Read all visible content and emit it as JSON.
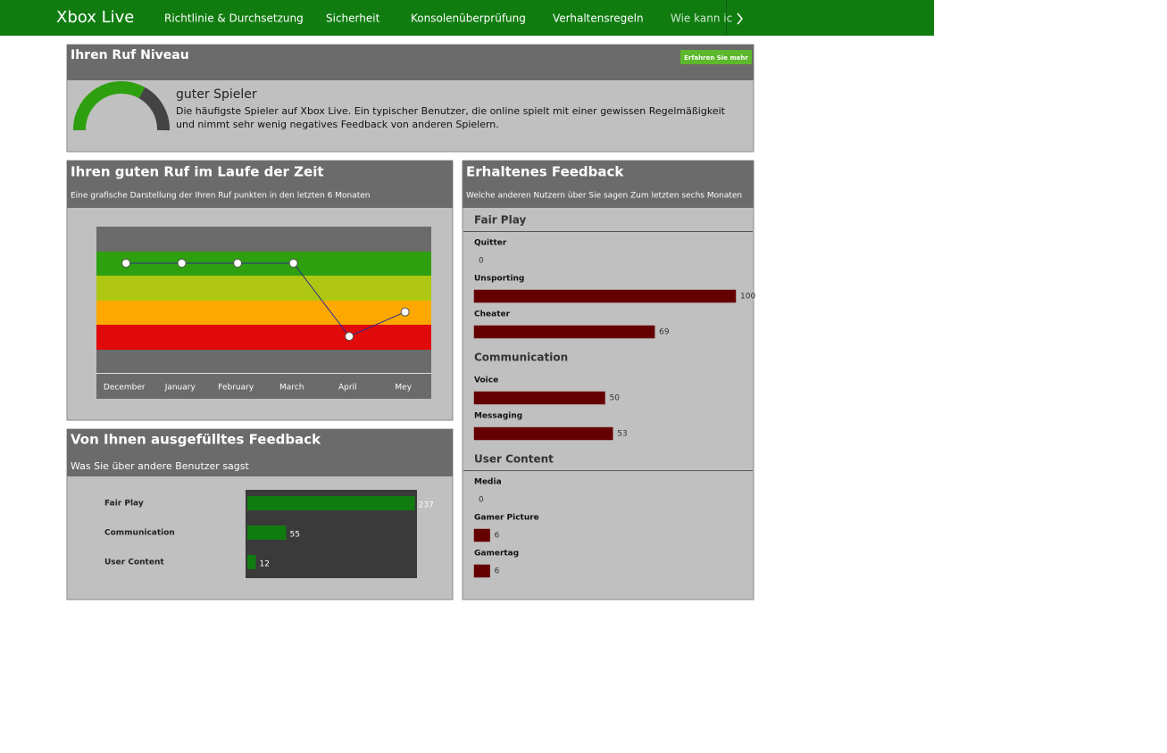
{
  "nav": {
    "brand": "Xbox Live",
    "items": [
      "Richtlinie & Durchsetzung",
      "Sicherheit",
      "Konsolenüberprüfung",
      "Verhaltensregeln",
      "Wie kann ic"
    ]
  },
  "reputation": {
    "title": "Ihren Ruf Niveau",
    "button": "Erfahren Sie mehr",
    "level": "guter Spieler",
    "description": [
      "Die häufigste Spieler auf Xbox Live. Ein typischer Benutzer, die online spielt mit einer gewissen Regelmäßigkeit",
      "und nimmt sehr wenig negatives Feedback von anderen Spielern."
    ]
  },
  "history": {
    "type": "line",
    "title": "Ihren guten Ruf im Laufe der Zeit",
    "subtitle": "Eine grafische Darstellung der Ihren Ruf punkten in den letzten 6 Monaten",
    "categories": [
      "December",
      "January",
      "February",
      "March",
      "April",
      "Mey"
    ],
    "values": [
      4.5,
      4.5,
      4.5,
      4.5,
      1.5,
      2.5
    ],
    "ylim": [
      0,
      6
    ],
    "color": "#2a2a8a"
  },
  "given": {
    "type": "bar",
    "title": "Von Ihnen ausgefülltes Feedback",
    "subtitle": "Was Sie über andere Benutzer sagst",
    "categories": [
      "Fair Play",
      "Communication",
      "User Content"
    ],
    "values": [
      237,
      55,
      12
    ],
    "xlim": [
      0,
      240
    ],
    "color": "#107c10"
  },
  "received": {
    "type": "bar",
    "title": "Erhaltenes Feedback",
    "subtitle": "Welche anderen Nutzern über Sie sagen Zum letzten sechs Monaten",
    "xlim": [
      0,
      100
    ],
    "color": "#650000",
    "groups": [
      {
        "name": "Fair Play",
        "items": [
          {
            "label": "Quitter",
            "value": 0
          },
          {
            "label": "Unsporting",
            "value": 100
          },
          {
            "label": "Cheater",
            "value": 69
          }
        ]
      },
      {
        "name": "Communication",
        "items": [
          {
            "label": "Voice",
            "value": 50
          },
          {
            "label": "Messaging",
            "value": 53
          }
        ]
      },
      {
        "name": "User Content",
        "items": [
          {
            "label": "Media",
            "value": 0
          },
          {
            "label": "Gamer Picture",
            "value": 6
          },
          {
            "label": "Gamertag",
            "value": 6
          }
        ]
      }
    ]
  }
}
